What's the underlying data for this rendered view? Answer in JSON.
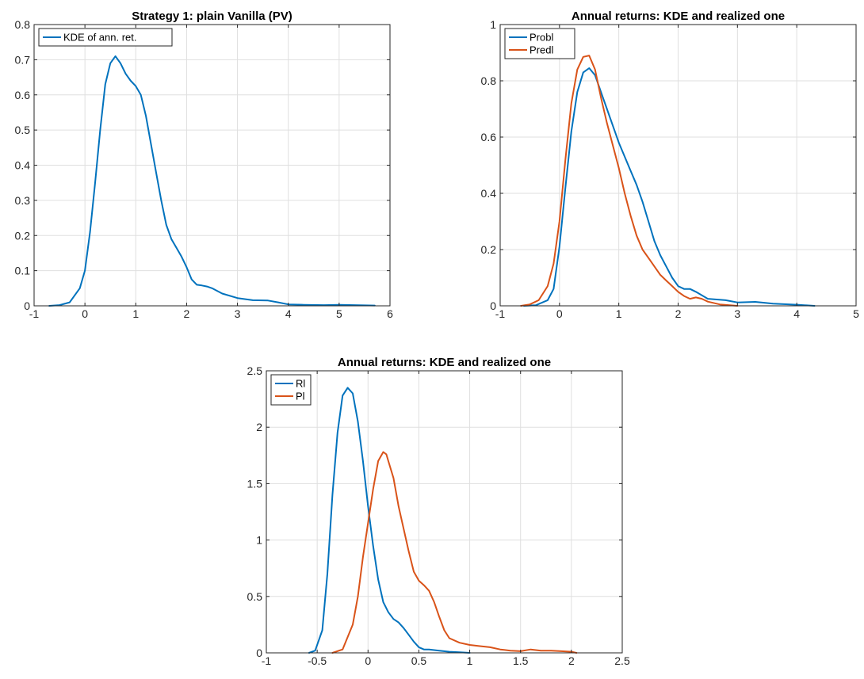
{
  "chart_data": [
    {
      "type": "line",
      "title": "Strategy 1: plain Vanilla (PV)",
      "xlabel": "",
      "ylabel": "",
      "xlim": [
        -1,
        6
      ],
      "ylim": [
        0,
        0.8
      ],
      "xticks": [
        -1,
        0,
        1,
        2,
        3,
        4,
        5,
        6
      ],
      "yticks": [
        0,
        0.1,
        0.2,
        0.3,
        0.4,
        0.5,
        0.6,
        0.7,
        0.8
      ],
      "xtick_labels": [
        "-1",
        "0",
        "1",
        "2",
        "3",
        "4",
        "5",
        "6"
      ],
      "ytick_labels": [
        "0",
        "0.1",
        "0.2",
        "0.3",
        "0.4",
        "0.5",
        "0.6",
        "0.7",
        "0.8"
      ],
      "grid": true,
      "legend": "top-left",
      "series": [
        {
          "name": "KDE of ann. ret.",
          "color": "#0072bd",
          "x": [
            -0.7,
            -0.5,
            -0.3,
            -0.1,
            0.0,
            0.1,
            0.2,
            0.3,
            0.4,
            0.5,
            0.6,
            0.7,
            0.8,
            0.9,
            1.0,
            1.1,
            1.2,
            1.3,
            1.4,
            1.5,
            1.6,
            1.7,
            1.8,
            1.9,
            2.0,
            2.1,
            2.2,
            2.3,
            2.4,
            2.5,
            2.7,
            3.0,
            3.3,
            3.6,
            3.8,
            4.0,
            4.3,
            4.7,
            5.0,
            5.3,
            5.7
          ],
          "y": [
            0.0,
            0.002,
            0.01,
            0.05,
            0.1,
            0.21,
            0.35,
            0.5,
            0.63,
            0.69,
            0.71,
            0.69,
            0.66,
            0.64,
            0.625,
            0.6,
            0.54,
            0.46,
            0.38,
            0.3,
            0.23,
            0.19,
            0.165,
            0.14,
            0.11,
            0.075,
            0.06,
            0.058,
            0.055,
            0.05,
            0.035,
            0.022,
            0.016,
            0.015,
            0.01,
            0.004,
            0.003,
            0.002,
            0.003,
            0.002,
            0.001
          ]
        }
      ]
    },
    {
      "type": "line",
      "title": "Annual returns: KDE and realized one",
      "xlabel": "",
      "ylabel": "",
      "xlim": [
        -1,
        5
      ],
      "ylim": [
        0,
        1
      ],
      "xticks": [
        -1,
        0,
        1,
        2,
        3,
        4,
        5
      ],
      "yticks": [
        0,
        0.2,
        0.4,
        0.6,
        0.8,
        1
      ],
      "xtick_labels": [
        "-1",
        "0",
        "1",
        "2",
        "3",
        "4",
        "5"
      ],
      "ytick_labels": [
        "0",
        "0.2",
        "0.4",
        "0.6",
        "0.8",
        "1"
      ],
      "grid": true,
      "legend": "top-left",
      "series": [
        {
          "name": "Probl",
          "color": "#0072bd",
          "x": [
            -0.6,
            -0.4,
            -0.2,
            -0.1,
            0.0,
            0.1,
            0.2,
            0.3,
            0.4,
            0.5,
            0.6,
            0.7,
            0.8,
            0.9,
            1.0,
            1.1,
            1.2,
            1.3,
            1.4,
            1.5,
            1.6,
            1.7,
            1.8,
            1.9,
            2.0,
            2.1,
            2.2,
            2.3,
            2.5,
            2.8,
            3.0,
            3.3,
            3.6,
            4.0,
            4.3
          ],
          "y": [
            0.0,
            0.002,
            0.02,
            0.06,
            0.21,
            0.42,
            0.62,
            0.76,
            0.83,
            0.845,
            0.82,
            0.76,
            0.7,
            0.64,
            0.58,
            0.53,
            0.48,
            0.43,
            0.37,
            0.3,
            0.23,
            0.18,
            0.14,
            0.1,
            0.07,
            0.06,
            0.06,
            0.05,
            0.025,
            0.02,
            0.012,
            0.014,
            0.008,
            0.004,
            0.0
          ]
        },
        {
          "name": "Predl",
          "color": "#d95319",
          "x": [
            -0.65,
            -0.5,
            -0.35,
            -0.2,
            -0.1,
            0.0,
            0.1,
            0.2,
            0.3,
            0.4,
            0.5,
            0.6,
            0.7,
            0.8,
            0.9,
            1.0,
            1.1,
            1.2,
            1.3,
            1.4,
            1.5,
            1.6,
            1.7,
            1.8,
            1.9,
            2.0,
            2.1,
            2.2,
            2.3,
            2.4,
            2.5,
            2.7,
            3.0
          ],
          "y": [
            0.0,
            0.005,
            0.02,
            0.07,
            0.15,
            0.3,
            0.52,
            0.72,
            0.84,
            0.885,
            0.89,
            0.84,
            0.74,
            0.65,
            0.57,
            0.49,
            0.4,
            0.32,
            0.25,
            0.2,
            0.17,
            0.14,
            0.11,
            0.09,
            0.07,
            0.05,
            0.035,
            0.025,
            0.03,
            0.025,
            0.015,
            0.005,
            0.0
          ]
        }
      ]
    },
    {
      "type": "line",
      "title": "Annual returns: KDE and realized one",
      "xlabel": "",
      "ylabel": "",
      "xlim": [
        -1,
        2.5
      ],
      "ylim": [
        0,
        2.5
      ],
      "xticks": [
        -1,
        -0.5,
        0,
        0.5,
        1,
        1.5,
        2,
        2.5
      ],
      "yticks": [
        0,
        0.5,
        1,
        1.5,
        2,
        2.5
      ],
      "xtick_labels": [
        "-1",
        "-0.5",
        "0",
        "0.5",
        "1",
        "1.5",
        "2",
        "2.5"
      ],
      "ytick_labels": [
        "0",
        "0.5",
        "1",
        "1.5",
        "2",
        "2.5"
      ],
      "grid": true,
      "legend": "top-left",
      "series": [
        {
          "name": "Rl",
          "color": "#0072bd",
          "x": [
            -0.58,
            -0.52,
            -0.45,
            -0.4,
            -0.35,
            -0.3,
            -0.25,
            -0.2,
            -0.15,
            -0.1,
            -0.05,
            0.0,
            0.05,
            0.1,
            0.15,
            0.2,
            0.25,
            0.3,
            0.35,
            0.4,
            0.45,
            0.5,
            0.55,
            0.6,
            0.7,
            0.8,
            0.9,
            1.0
          ],
          "y": [
            0.0,
            0.02,
            0.2,
            0.7,
            1.4,
            1.95,
            2.28,
            2.35,
            2.3,
            2.05,
            1.7,
            1.3,
            0.95,
            0.65,
            0.45,
            0.36,
            0.3,
            0.27,
            0.22,
            0.16,
            0.1,
            0.05,
            0.03,
            0.03,
            0.02,
            0.01,
            0.005,
            0.0
          ]
        },
        {
          "name": "Pl",
          "color": "#d95319",
          "x": [
            -0.35,
            -0.25,
            -0.15,
            -0.1,
            -0.05,
            0.0,
            0.05,
            0.1,
            0.15,
            0.18,
            0.2,
            0.25,
            0.3,
            0.35,
            0.4,
            0.45,
            0.5,
            0.55,
            0.6,
            0.65,
            0.7,
            0.75,
            0.8,
            0.9,
            1.0,
            1.1,
            1.2,
            1.3,
            1.4,
            1.5,
            1.6,
            1.7,
            1.8,
            1.9,
            2.0,
            2.05
          ],
          "y": [
            0.0,
            0.03,
            0.25,
            0.5,
            0.85,
            1.15,
            1.45,
            1.7,
            1.78,
            1.76,
            1.7,
            1.55,
            1.3,
            1.1,
            0.9,
            0.72,
            0.64,
            0.6,
            0.55,
            0.45,
            0.32,
            0.2,
            0.13,
            0.09,
            0.07,
            0.06,
            0.05,
            0.03,
            0.02,
            0.015,
            0.03,
            0.02,
            0.02,
            0.015,
            0.01,
            0.0
          ]
        }
      ]
    }
  ]
}
